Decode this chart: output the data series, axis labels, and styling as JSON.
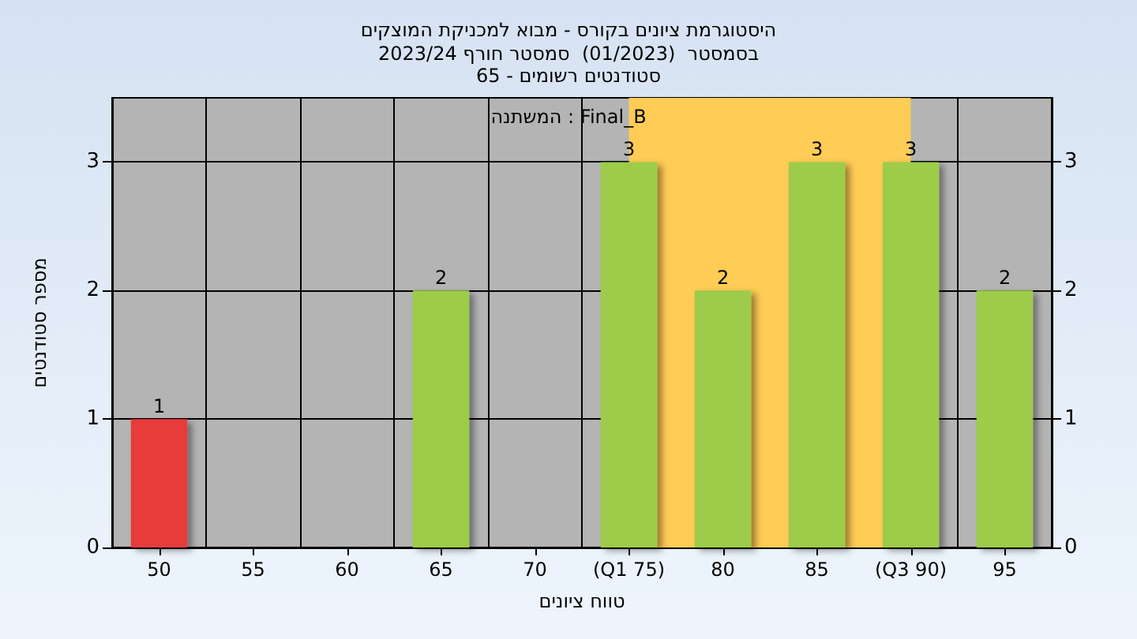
{
  "chart_data": {
    "type": "bar",
    "title": "היסטוגרמת ציונים בקורס - מבוא למכניקת המוצקים",
    "subtitle": "בסמסטר  (01/2023)  סמסטר חורף 2023/24\nסטודנטים רשומים - 65",
    "xlabel": "טווח ציונים",
    "ylabel": "מספר סטודנטים",
    "annotations": [
      "המשתנה : Final_B"
    ],
    "categories": [
      "50",
      "55",
      "60",
      "65",
      "70",
      "(Q1 75)",
      "80",
      "85",
      "(Q3 90)",
      "95"
    ],
    "values": [
      1,
      0,
      0,
      2,
      0,
      3,
      2,
      3,
      3,
      2
    ],
    "colors": [
      "#e83a3a",
      "#9ccc48",
      "#9ccc48",
      "#9ccc48",
      "#9ccc48",
      "#9ccc48",
      "#9ccc48",
      "#9ccc48",
      "#9ccc48",
      "#9ccc48"
    ],
    "value_labels": [
      "1",
      null,
      null,
      "2",
      null,
      "3",
      "2",
      "3",
      "3",
      "2"
    ],
    "ylim": [
      0,
      3.5
    ],
    "yticks": [
      0,
      1,
      2,
      3
    ],
    "y2lim": [
      0,
      3.5
    ],
    "y2ticks": [
      0,
      1,
      2,
      3
    ],
    "bands": [
      {
        "axis": "x",
        "from": "(Q1 75)",
        "to": "(Q3 90)",
        "color": "#ffcc55"
      }
    ],
    "grid": true
  }
}
